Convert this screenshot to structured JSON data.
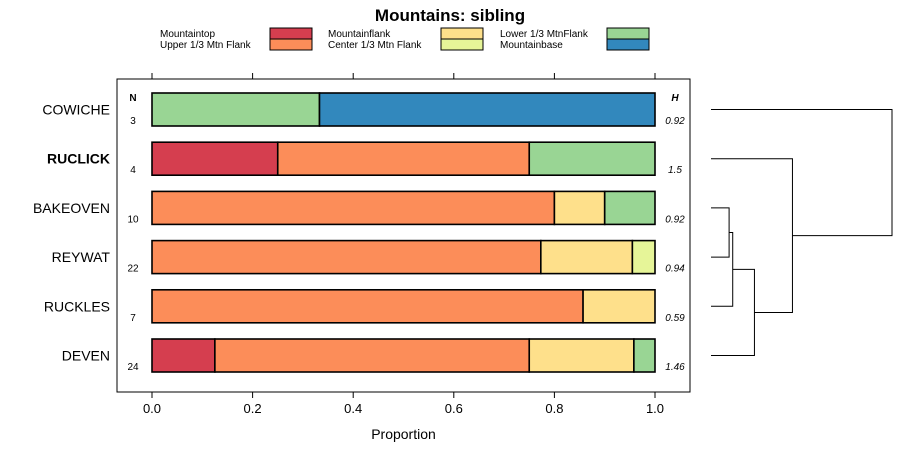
{
  "chart_data": {
    "type": "stacked-bar-horizontal",
    "title": "Mountains: sibling",
    "xlabel": "Proportion",
    "xlim": [
      0,
      1
    ],
    "xticks": [
      "0.0",
      "0.2",
      "0.4",
      "0.6",
      "0.8",
      "1.0"
    ],
    "xtick_values": [
      0,
      0.2,
      0.4,
      0.6,
      0.8,
      1.0
    ],
    "n_header": "N",
    "h_header": "H",
    "categories": [
      {
        "key": "mountaintop",
        "label": "Mountaintop",
        "color": "#d53e4f"
      },
      {
        "key": "upper",
        "label": "Upper 1/3 Mtn Flank",
        "color": "#fc8d59"
      },
      {
        "key": "flank",
        "label": "Mountainflank",
        "color": "#fee08b"
      },
      {
        "key": "center",
        "label": "Center 1/3 Mtn Flank",
        "color": "#e6f598"
      },
      {
        "key": "lower",
        "label": "Lower 1/3 MtnFlank",
        "color": "#99d594"
      },
      {
        "key": "base",
        "label": "Mountainbase",
        "color": "#3288bd"
      }
    ],
    "rows": [
      {
        "label": "COWICHE",
        "bold": false,
        "n": "3",
        "h": "0.92",
        "segments": [
          {
            "key": "lower",
            "value": 0.333
          },
          {
            "key": "base",
            "value": 0.667
          }
        ]
      },
      {
        "label": "RUCLICK",
        "bold": true,
        "n": "4",
        "h": "1.5",
        "segments": [
          {
            "key": "mountaintop",
            "value": 0.25
          },
          {
            "key": "upper",
            "value": 0.5
          },
          {
            "key": "lower",
            "value": 0.25
          }
        ]
      },
      {
        "label": "BAKEOVEN",
        "bold": false,
        "n": "10",
        "h": "0.92",
        "segments": [
          {
            "key": "upper",
            "value": 0.8
          },
          {
            "key": "flank",
            "value": 0.1
          },
          {
            "key": "lower",
            "value": 0.1
          }
        ]
      },
      {
        "label": "REYWAT",
        "bold": false,
        "n": "22",
        "h": "0.94",
        "segments": [
          {
            "key": "upper",
            "value": 0.773
          },
          {
            "key": "flank",
            "value": 0.182
          },
          {
            "key": "center",
            "value": 0.045
          }
        ]
      },
      {
        "label": "RUCKLES",
        "bold": false,
        "n": "7",
        "h": "0.59",
        "segments": [
          {
            "key": "upper",
            "value": 0.857
          },
          {
            "key": "flank",
            "value": 0.143
          }
        ]
      },
      {
        "label": "DEVEN",
        "bold": false,
        "n": "24",
        "h": "1.46",
        "segments": [
          {
            "key": "mountaintop",
            "value": 0.125
          },
          {
            "key": "upper",
            "value": 0.625
          },
          {
            "key": "flank",
            "value": 0.208
          },
          {
            "key": "lower",
            "value": 0.042
          }
        ]
      }
    ],
    "dendrogram": {
      "leaf_order": [
        "COWICHE",
        "RUCLICK",
        "BAKEOVEN",
        "REYWAT",
        "RUCKLES",
        "DEVEN"
      ],
      "merges": [
        {
          "a": "BAKEOVEN",
          "b": "REYWAT",
          "height": 0.1
        },
        {
          "a": "m0",
          "b": "RUCKLES",
          "height": 0.12
        },
        {
          "a": "m1",
          "b": "DEVEN",
          "height": 0.24
        },
        {
          "a": "RUCLICK",
          "b": "m2",
          "height": 0.45
        },
        {
          "a": "COWICHE",
          "b": "m3",
          "height": 1.0
        }
      ]
    }
  }
}
